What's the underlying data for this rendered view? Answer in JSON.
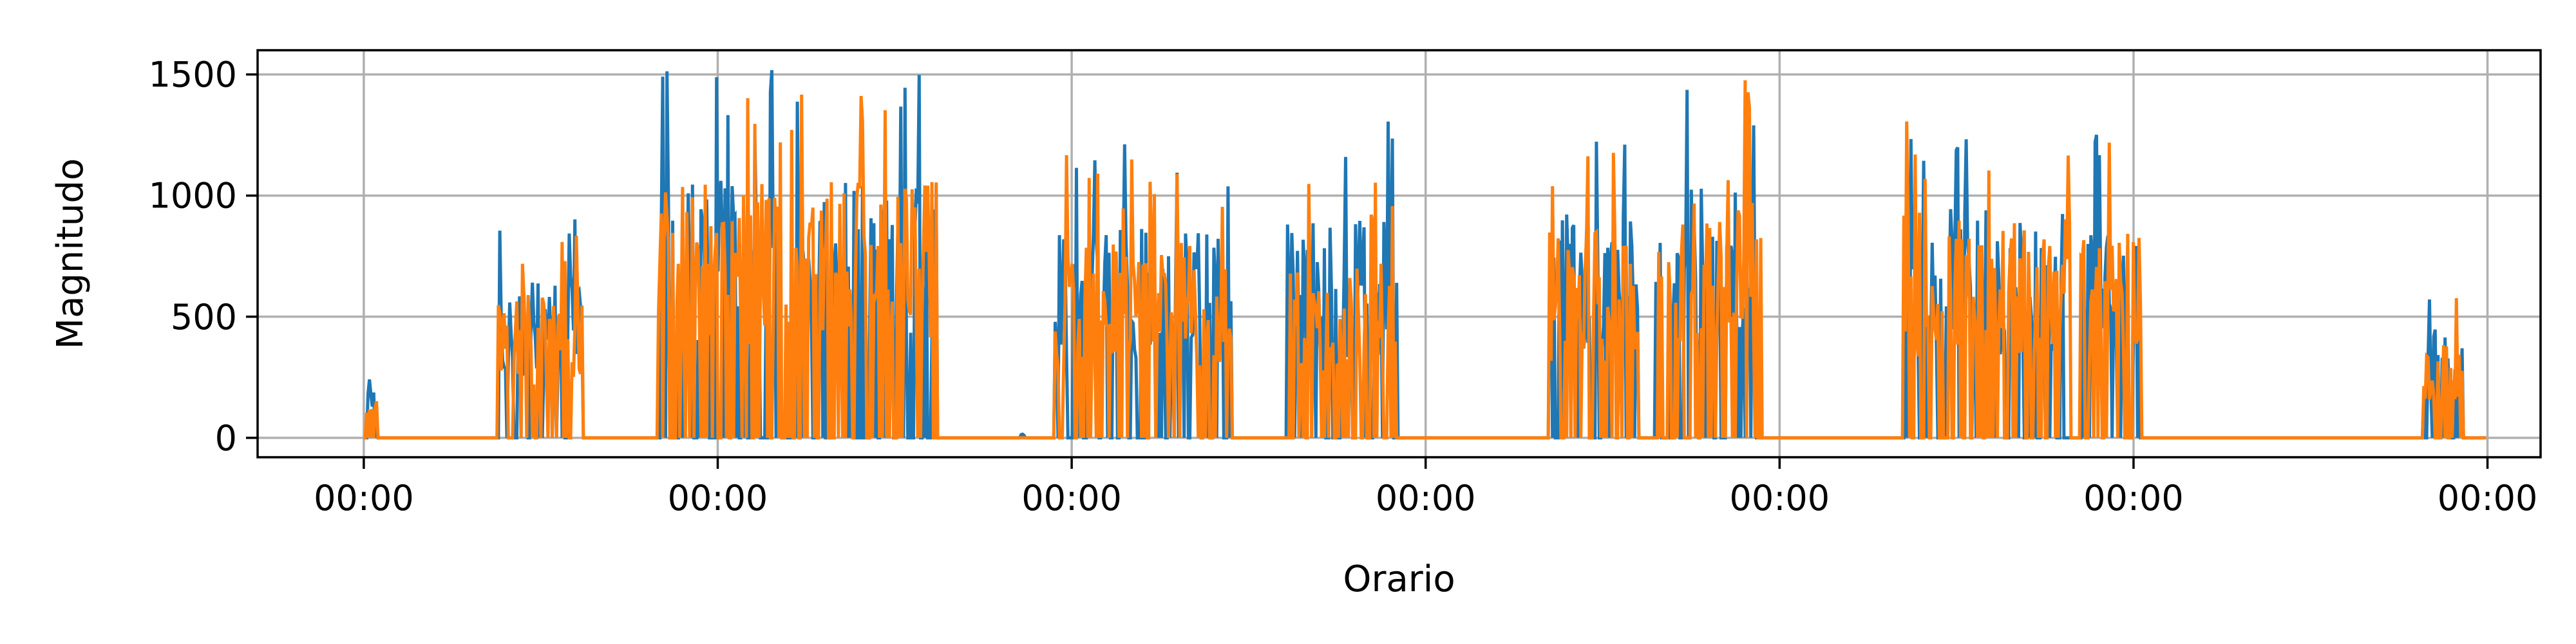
{
  "chart_data": {
    "type": "line",
    "title": "",
    "xlabel": "Orario",
    "ylabel": "Magnitudo",
    "ylim": [
      -80,
      1600
    ],
    "yticks": [
      0,
      500,
      1000,
      1500
    ],
    "xlim": [
      -0.3,
      6.15
    ],
    "xticks": [
      0,
      1,
      2,
      3,
      4,
      5,
      6
    ],
    "xtick_labels": [
      "00:00",
      "00:00",
      "00:00",
      "00:00",
      "00:00",
      "00:00",
      "00:00"
    ],
    "grid": true,
    "legend": "none",
    "series": [
      {
        "color": "#1f77b4",
        "activity_windows": [
          {
            "start": 0.0,
            "end": 0.04,
            "peak": 380
          },
          {
            "start": 0.38,
            "end": 0.62,
            "peak": 950
          },
          {
            "start": 0.83,
            "end": 1.62,
            "peak": 1520
          },
          {
            "start": 1.85,
            "end": 1.87,
            "peak": 40
          },
          {
            "start": 1.95,
            "end": 2.45,
            "peak": 1250
          },
          {
            "start": 2.6,
            "end": 2.92,
            "peak": 1320
          },
          {
            "start": 3.35,
            "end": 3.6,
            "peak": 1320
          },
          {
            "start": 3.65,
            "end": 3.95,
            "peak": 1510
          },
          {
            "start": 4.35,
            "end": 4.82,
            "peak": 1360
          },
          {
            "start": 4.85,
            "end": 5.02,
            "peak": 1280
          },
          {
            "start": 5.82,
            "end": 5.93,
            "peak": 650
          }
        ]
      },
      {
        "color": "#ff7f0e",
        "activity_windows": [
          {
            "start": 0.0,
            "end": 0.04,
            "peak": 230
          },
          {
            "start": 0.38,
            "end": 0.62,
            "peak": 860
          },
          {
            "start": 0.83,
            "end": 1.62,
            "peak": 1510
          },
          {
            "start": 1.95,
            "end": 2.45,
            "peak": 1170
          },
          {
            "start": 2.6,
            "end": 2.92,
            "peak": 1080
          },
          {
            "start": 3.35,
            "end": 3.6,
            "peak": 1250
          },
          {
            "start": 3.65,
            "end": 3.95,
            "peak": 1520
          },
          {
            "start": 4.35,
            "end": 4.82,
            "peak": 1330
          },
          {
            "start": 4.85,
            "end": 5.02,
            "peak": 1260
          },
          {
            "start": 5.82,
            "end": 5.93,
            "peak": 600
          }
        ]
      }
    ]
  }
}
